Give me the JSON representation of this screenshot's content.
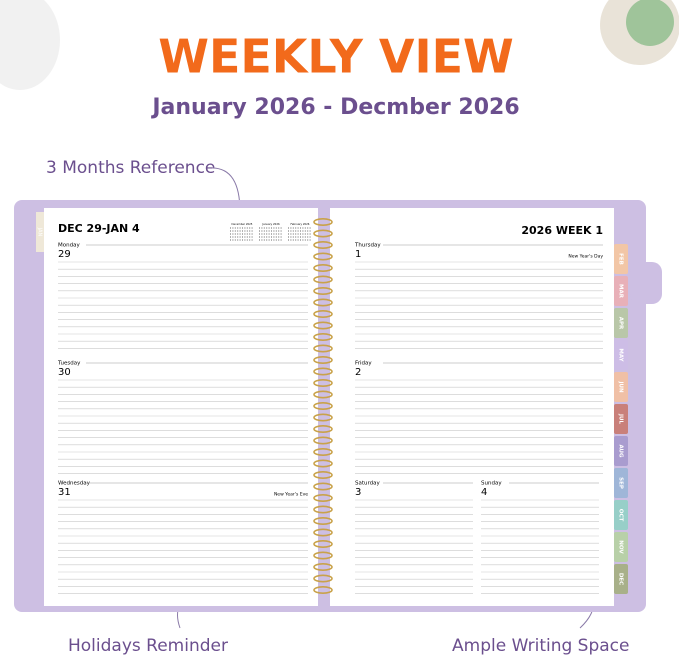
{
  "header": {
    "title": "WEEKLY VIEW",
    "subtitle": "January 2026 - Decmber 2026"
  },
  "callouts": [
    "3 Months Reference",
    "Holidays Reminder",
    "Ample Writing Space"
  ],
  "left_page": {
    "heading": "DEC 29-JAN 4",
    "mini_calendars": [
      "December 2025",
      "January 2026",
      "February 2026"
    ],
    "days": [
      {
        "name": "Monday",
        "date": "29"
      },
      {
        "name": "Tuesday",
        "date": "30"
      },
      {
        "name": "Wednesday",
        "date": "31",
        "holiday": "New Year's Eve"
      }
    ]
  },
  "right_page": {
    "heading": "2026 WEEK 1",
    "days": [
      {
        "name": "Thursday",
        "date": "1",
        "holiday": "New Year's Day"
      },
      {
        "name": "Friday",
        "date": "2"
      },
      {
        "name": "Saturday",
        "date": "3"
      },
      {
        "name": "Sunday",
        "date": "4"
      }
    ]
  },
  "tabs": [
    "JAN",
    "FEB",
    "MAR",
    "APR",
    "MAY",
    "JUN",
    "JUL",
    "AUG",
    "SEP",
    "OCT",
    "NOV",
    "DEC"
  ]
}
